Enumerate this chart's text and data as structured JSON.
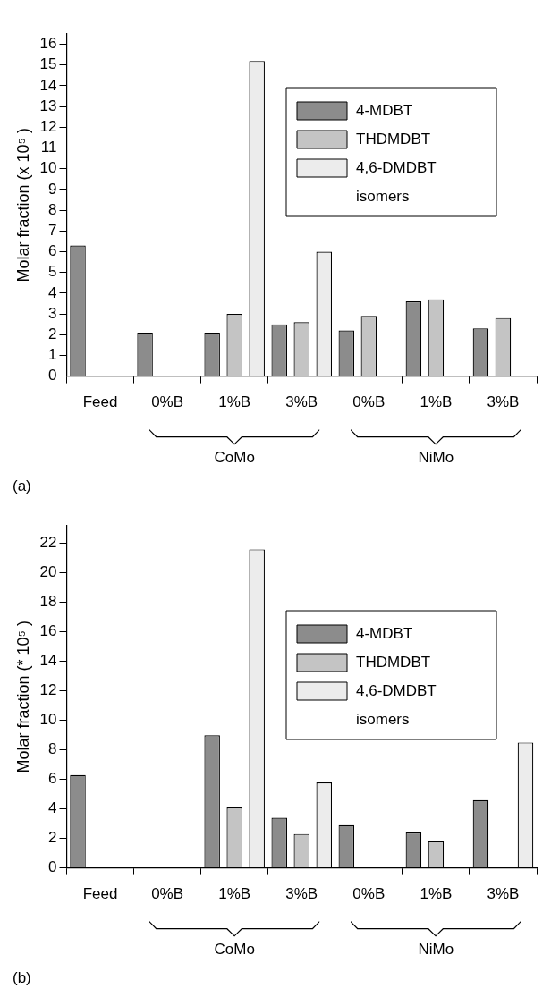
{
  "chart_data": [
    {
      "type": "bar",
      "ylabel": "Molar fraction (x 10⁵ )",
      "categories": [
        "Feed",
        "0%B",
        "1%B",
        "3%B",
        "0%B",
        "1%B",
        "3%B"
      ],
      "series": [
        {
          "name": "4-MDBT",
          "color": "#8c8c8c",
          "values": [
            6.3,
            2.1,
            2.1,
            2.5,
            2.2,
            3.6,
            2.3
          ]
        },
        {
          "name": "THDMDBT",
          "color": "#c4c4c4",
          "values": [
            null,
            null,
            3.0,
            2.6,
            2.9,
            3.7,
            2.8
          ]
        },
        {
          "name": "4,6-DMDBT isomers",
          "color": "#ececec",
          "values": [
            null,
            null,
            15.2,
            6.0,
            null,
            null,
            null
          ]
        }
      ],
      "ylim": [
        0,
        16.5
      ],
      "yticks": [
        0,
        1,
        2,
        3,
        4,
        5,
        6,
        7,
        8,
        9,
        10,
        11,
        12,
        13,
        14,
        15,
        16
      ],
      "grid": false,
      "legend": "top right",
      "annotations": [
        "(a)",
        "CoMo",
        "NiMo"
      ]
    },
    {
      "type": "bar",
      "ylabel": "Molar fraction (* 10⁵ )",
      "categories": [
        "Feed",
        "0%B",
        "1%B",
        "3%B",
        "0%B",
        "1%B",
        "3%B"
      ],
      "series": [
        {
          "name": "4-MDBT",
          "color": "#8c8c8c",
          "values": [
            6.3,
            null,
            9.0,
            3.4,
            2.9,
            2.4,
            4.6
          ]
        },
        {
          "name": "THDMDBT",
          "color": "#c4c4c4",
          "values": [
            null,
            null,
            4.1,
            2.3,
            null,
            1.8,
            null
          ]
        },
        {
          "name": "4,6-DMDBT isomers",
          "color": "#ececec",
          "values": [
            null,
            null,
            21.6,
            5.8,
            null,
            null,
            8.5
          ]
        }
      ],
      "ylim": [
        0,
        23.2
      ],
      "yticks": [
        0,
        2,
        4,
        6,
        8,
        10,
        12,
        14,
        16,
        18,
        20,
        22
      ],
      "grid": false,
      "legend": "top right",
      "annotations": [
        "(b)",
        "CoMo",
        "NiMo"
      ]
    }
  ]
}
